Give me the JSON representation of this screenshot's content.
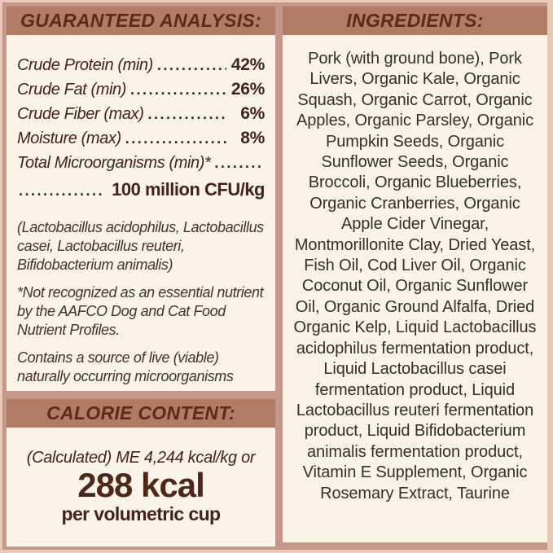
{
  "colors": {
    "outer_edge": "#e9c8b7",
    "background_mauve": "#c5968a",
    "header_bar": "#b07c66",
    "header_text": "#5c2a1a",
    "panel_cream": "#faf3e8",
    "body_text": "#432319",
    "kcal_text": "#4f2718"
  },
  "guaranteed_analysis": {
    "title": "GUARANTEED ANALYSIS:",
    "rows": [
      {
        "label": "Crude Protein (min)",
        "value": "42%"
      },
      {
        "label": "Crude Fat (min)",
        "value": "26%"
      },
      {
        "label": "Crude Fiber (max)",
        "value": "6%"
      },
      {
        "label": "Moisture (max)",
        "value": "8%"
      }
    ],
    "micro_label": "Total Microorganisms (min)*",
    "micro_value": "100 million CFU/kg",
    "notes": [
      "(Lactobacillus acidophilus, Lactobacillus casei, Lactobacillus reuteri, Bifidobacterium animalis)",
      "*Not recognized as an essential nutrient by the AAFCO Dog and Cat Food Nutrient Profiles.",
      "Contains a source of live (viable) naturally occurring microorganisms"
    ]
  },
  "calorie_content": {
    "title": "CALORIE CONTENT:",
    "line1": "(Calculated) ME 4,244 kcal/kg or",
    "kcal": "288 kcal",
    "per": "per volumetric cup"
  },
  "ingredients": {
    "title": "INGREDIENTS:",
    "text": "Pork (with ground bone), Pork Livers, Organic Kale, Organic Squash, Organic Carrot, Organic Apples, Organic Parsley, Organic Pumpkin Seeds, Organic Sunflower Seeds, Organic Broccoli, Organic Blueberries, Organic Cranberries, Organic Apple Cider Vinegar, Montmorillonite Clay, Dried Yeast, Fish Oil, Cod Liver Oil, Organic Coconut Oil, Organic Sunflower Oil, Organic Ground Alfalfa, Dried Organic Kelp, Liquid Lactobacillus acidophilus fermentation product, Liquid Lactobacillus casei fermentation product, Liquid Lactobacillus reuteri fermentation product, Liquid Bifidobacterium animalis fermentation product, Vitamin E Supplement, Organic Rosemary Extract, Taurine"
  }
}
